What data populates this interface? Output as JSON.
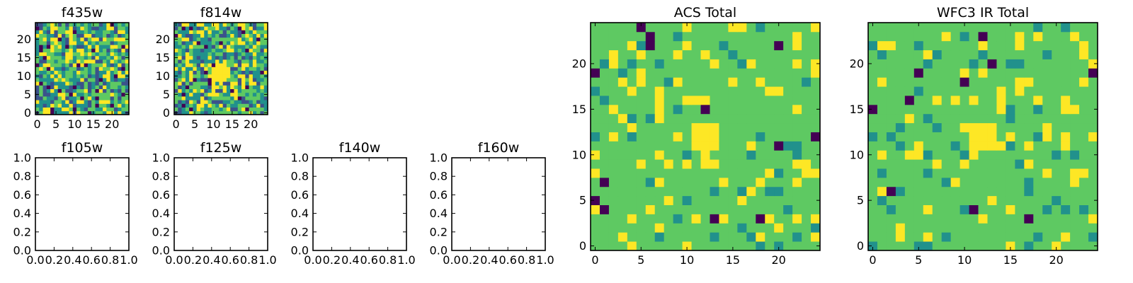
{
  "palette": [
    "#440154",
    "#3b528b",
    "#21918c",
    "#5ec962",
    "#fde725"
  ],
  "chart_data": [
    {
      "type": "heatmap",
      "id": "f435w",
      "title": "f435w",
      "grid_size": 25,
      "xlim": [
        -0.5,
        24.5
      ],
      "ylim": [
        -0.5,
        24.5
      ],
      "xticks": [
        0,
        5,
        10,
        15,
        20
      ],
      "yticks": [
        0,
        5,
        10,
        15,
        20
      ],
      "colormap": "viridis",
      "pattern": "noisy"
    },
    {
      "type": "heatmap",
      "id": "f814w",
      "title": "f814w",
      "grid_size": 25,
      "xlim": [
        -0.5,
        24.5
      ],
      "ylim": [
        -0.5,
        24.5
      ],
      "xticks": [
        0,
        5,
        10,
        15,
        20
      ],
      "yticks": [
        0,
        5,
        10,
        15,
        20
      ],
      "colormap": "viridis",
      "pattern": "noisy",
      "bright_center": [
        12,
        11
      ]
    },
    {
      "type": "empty",
      "id": "f105w",
      "title": "f105w",
      "xlim": [
        0,
        1
      ],
      "ylim": [
        0,
        1
      ],
      "xticks": [
        "0.0",
        "0.2",
        "0.4",
        "0.6",
        "0.8",
        "1.0"
      ],
      "yticks": [
        "0.0",
        "0.2",
        "0.4",
        "0.6",
        "0.8",
        "1.0"
      ]
    },
    {
      "type": "empty",
      "id": "f125w",
      "title": "f125w",
      "xlim": [
        0,
        1
      ],
      "ylim": [
        0,
        1
      ],
      "xticks": [
        "0.0",
        "0.2",
        "0.4",
        "0.6",
        "0.8",
        "1.0"
      ],
      "yticks": [
        "0.0",
        "0.2",
        "0.4",
        "0.6",
        "0.8",
        "1.0"
      ]
    },
    {
      "type": "empty",
      "id": "f140w",
      "title": "f140w",
      "xlim": [
        0,
        1
      ],
      "ylim": [
        0,
        1
      ],
      "xticks": [
        "0.0",
        "0.2",
        "0.4",
        "0.6",
        "0.8",
        "1.0"
      ],
      "yticks": [
        "0.0",
        "0.2",
        "0.4",
        "0.6",
        "0.8",
        "1.0"
      ]
    },
    {
      "type": "empty",
      "id": "f160w",
      "title": "f160w",
      "xlim": [
        0,
        1
      ],
      "ylim": [
        0,
        1
      ],
      "xticks": [
        "0.0",
        "0.2",
        "0.4",
        "0.6",
        "0.8",
        "1.0"
      ],
      "yticks": [
        "0.0",
        "0.2",
        "0.4",
        "0.6",
        "0.8",
        "1.0"
      ]
    },
    {
      "type": "heatmap",
      "id": "acs-total",
      "title": "ACS Total",
      "grid_size": 25,
      "xlim": [
        -0.5,
        24.5
      ],
      "ylim": [
        -0.5,
        24.5
      ],
      "xticks": [
        0,
        5,
        10,
        15,
        20
      ],
      "yticks": [
        0,
        5,
        10,
        15,
        20
      ],
      "colormap": "viridis",
      "pattern": "smooth",
      "bright_center": [
        12,
        12
      ]
    },
    {
      "type": "heatmap",
      "id": "wfc3-ir-total",
      "title": "WFC3 IR Total",
      "grid_size": 25,
      "xlim": [
        -0.5,
        24.5
      ],
      "ylim": [
        -0.5,
        24.5
      ],
      "xticks": [
        0,
        5,
        10,
        15,
        20
      ],
      "yticks": [
        0,
        5,
        10,
        15,
        20
      ],
      "colormap": "viridis",
      "pattern": "smooth",
      "bright_center": [
        12,
        12
      ]
    }
  ]
}
